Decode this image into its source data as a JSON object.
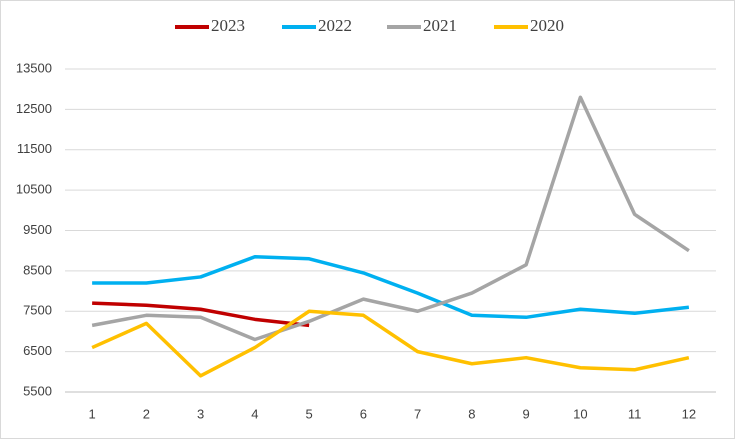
{
  "chart_data": {
    "type": "line",
    "categories": [
      "1",
      "2",
      "3",
      "4",
      "5",
      "6",
      "7",
      "8",
      "9",
      "10",
      "11",
      "12"
    ],
    "series": [
      {
        "name": "2023",
        "color": "#c00000",
        "values": [
          7700,
          7650,
          7550,
          7300,
          7150,
          null,
          null,
          null,
          null,
          null,
          null,
          null
        ]
      },
      {
        "name": "2022",
        "color": "#00b0f0",
        "values": [
          8200,
          8200,
          8350,
          8850,
          8800,
          8450,
          7950,
          7400,
          7350,
          7550,
          7450,
          7600
        ]
      },
      {
        "name": "2021",
        "color": "#a5a5a5",
        "values": [
          7150,
          7400,
          7350,
          6800,
          7250,
          7800,
          7500,
          7950,
          8650,
          12800,
          9900,
          9000
        ]
      },
      {
        "name": "2020",
        "color": "#ffc000",
        "values": [
          6600,
          7200,
          5900,
          6600,
          7500,
          7400,
          6500,
          6200,
          6350,
          6100,
          6050,
          6350
        ]
      }
    ],
    "ylim": [
      5500,
      13500
    ],
    "yticks": [
      5500,
      6500,
      7500,
      8500,
      9500,
      10500,
      11500,
      12500,
      13500
    ],
    "grid": true,
    "legend": "top"
  }
}
